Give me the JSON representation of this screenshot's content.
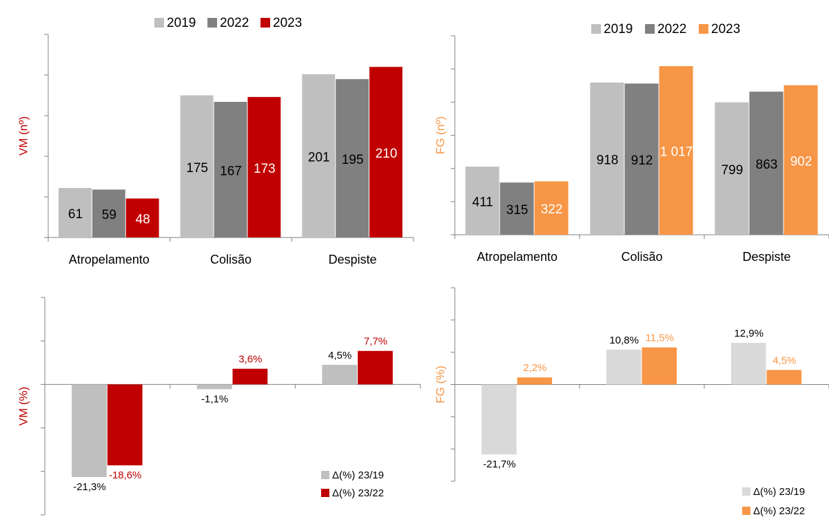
{
  "chart_data": [
    {
      "type": "bar",
      "ylabel": "VM (nº)",
      "categories": [
        "Atropelamento",
        "Colisão",
        "Despiste"
      ],
      "series": [
        {
          "name": "2019",
          "color": "#bfbfbf",
          "values": [
            61,
            175,
            201
          ]
        },
        {
          "name": "2022",
          "color": "#808080",
          "values": [
            59,
            167,
            195
          ]
        },
        {
          "name": "2023",
          "color": "#c00000",
          "values": [
            48,
            173,
            210
          ]
        }
      ],
      "ylim": [
        0,
        250
      ],
      "yticks": [
        0,
        50,
        100,
        150,
        200,
        250
      ],
      "legend": "top"
    },
    {
      "type": "bar",
      "ylabel": "FG (nº)",
      "categories": [
        "Atropelamento",
        "Colisão",
        "Despiste"
      ],
      "series": [
        {
          "name": "2019",
          "color": "#bfbfbf",
          "values": [
            411,
            918,
            799
          ]
        },
        {
          "name": "2022",
          "color": "#808080",
          "values": [
            315,
            912,
            863
          ]
        },
        {
          "name": "2023",
          "color": "#f79646",
          "values": [
            322,
            1017,
            902
          ],
          "value_labels": [
            "322",
            "1 017",
            "902"
          ]
        }
      ],
      "ylim": [
        0,
        1200
      ],
      "yticks": [
        0,
        200,
        400,
        600,
        800,
        1000,
        1200
      ],
      "legend": "top"
    },
    {
      "type": "bar",
      "ylabel": "VM (%)",
      "categories": [
        null,
        null,
        null
      ],
      "series": [
        {
          "name": "Δ(%) 23/19",
          "color": "#bfbfbf",
          "values": [
            -21.3,
            -1.1,
            4.5
          ],
          "value_labels": [
            "-21,3%",
            "-1,1%",
            "4,5%"
          ]
        },
        {
          "name": "Δ(%) 23/22",
          "color": "#c00000",
          "values": [
            -18.6,
            3.6,
            7.7
          ],
          "value_labels": [
            "-18,6%",
            "3,6%",
            "7,7%"
          ]
        }
      ],
      "ylim": [
        -30,
        20
      ],
      "yticks": [
        -30,
        -20,
        -10,
        0,
        10,
        20
      ],
      "legend": "lower right"
    },
    {
      "type": "bar",
      "ylabel": "FG (%)",
      "categories": [
        null,
        null,
        null
      ],
      "series": [
        {
          "name": "Δ(%) 23/19",
          "color": "#d9d9d9",
          "values": [
            -21.7,
            10.8,
            12.9
          ],
          "value_labels": [
            "-21,7%",
            "10,8%",
            "12,9%"
          ]
        },
        {
          "name": "Δ(%) 23/22",
          "color": "#f79646",
          "values": [
            2.2,
            11.5,
            4.5
          ],
          "value_labels": [
            "2,2%",
            "11,5%",
            "4,5%"
          ]
        }
      ],
      "ylim": [
        -30,
        30
      ],
      "yticks": [
        -30,
        -20,
        -10,
        0,
        10,
        20,
        30
      ],
      "legend": "lower right"
    }
  ]
}
